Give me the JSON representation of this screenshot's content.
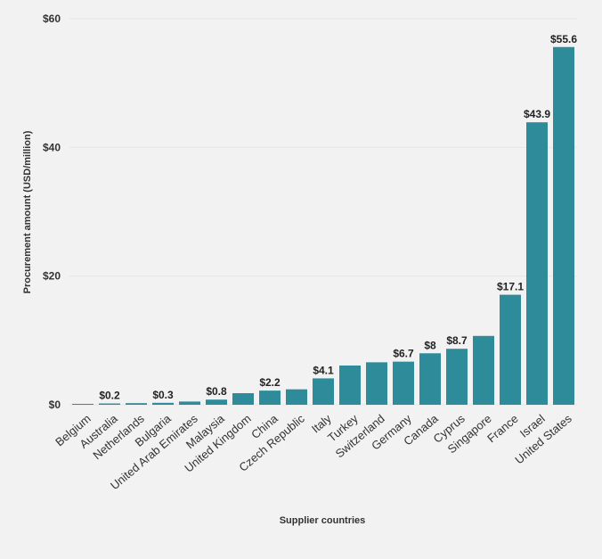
{
  "chart_data": {
    "type": "bar",
    "xlabel": "Supplier countries",
    "ylabel": "Procurement amount (USD/million)",
    "ylim": [
      0,
      60
    ],
    "yticks": [
      0,
      20,
      40,
      60
    ],
    "ytick_labels": [
      "$0",
      "$20",
      "$40",
      "$60"
    ],
    "grid": true,
    "bar_color": "#2e8b99",
    "categories": [
      "Belgium",
      "Australia",
      "Netherlands",
      "Bulgaria",
      "United Arab Emirates",
      "Malaysia",
      "United Kingdom",
      "China",
      "Czech Republic",
      "Italy",
      "Turkey",
      "Switzerland",
      "Germany",
      "Canada",
      "Cyprus",
      "Singapore",
      "France",
      "Israel",
      "United States"
    ],
    "values": [
      0.1,
      0.2,
      0.25,
      0.3,
      0.5,
      0.8,
      1.8,
      2.2,
      2.4,
      4.1,
      6.1,
      6.6,
      6.7,
      8.0,
      8.7,
      10.7,
      17.1,
      43.9,
      55.6
    ],
    "data_labels": [
      "",
      "$0.2",
      "",
      "$0.3",
      "",
      "$0.8",
      "",
      "$2.2",
      "",
      "$4.1",
      "",
      "",
      "$6.7",
      "$8",
      "$8.7",
      "",
      "$17.1",
      "$43.9",
      "$55.6"
    ]
  }
}
